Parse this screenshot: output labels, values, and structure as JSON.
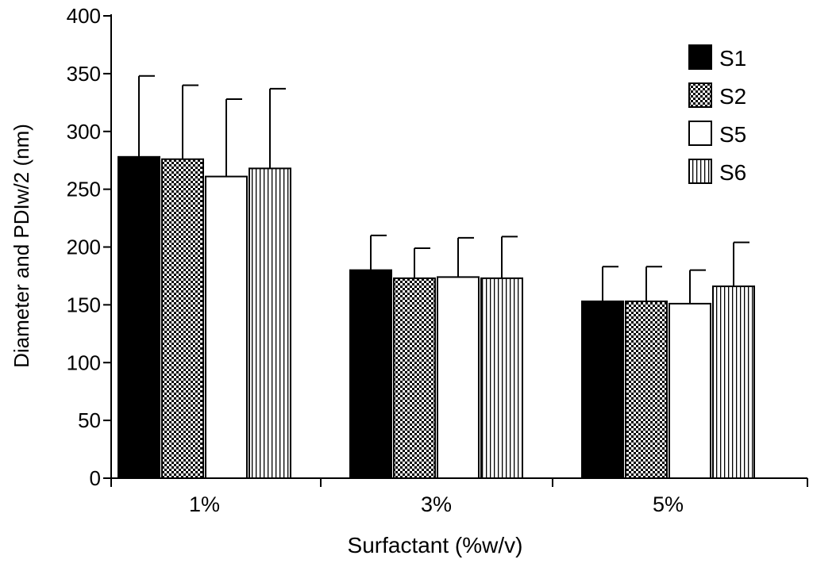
{
  "chart_data": {
    "type": "bar",
    "xlabel": "Surfactant  (%w/v)",
    "ylabel": "Diameter and PDIw/2 (nm)",
    "ylim": [
      0,
      400
    ],
    "yticks": [
      0,
      50,
      100,
      150,
      200,
      250,
      300,
      350,
      400
    ],
    "categories": [
      "1%",
      "3%",
      "5%"
    ],
    "grid": false,
    "legend_position": "top-right",
    "series": [
      {
        "name": "S1",
        "pattern": "solid-black",
        "values": [
          278,
          180,
          153
        ],
        "errors": [
          70,
          30,
          30
        ]
      },
      {
        "name": "S2",
        "pattern": "checkerboard",
        "values": [
          276,
          173,
          153
        ],
        "errors": [
          64,
          26,
          30
        ]
      },
      {
        "name": "S5",
        "pattern": "white",
        "values": [
          261,
          174,
          151
        ],
        "errors": [
          67,
          34,
          29
        ]
      },
      {
        "name": "S6",
        "pattern": "vertical-stripes",
        "values": [
          268,
          173,
          166
        ],
        "errors": [
          69,
          36,
          38
        ]
      }
    ],
    "colors": {
      "axis": "#000000",
      "solid": "#000000",
      "background": "#ffffff"
    }
  }
}
